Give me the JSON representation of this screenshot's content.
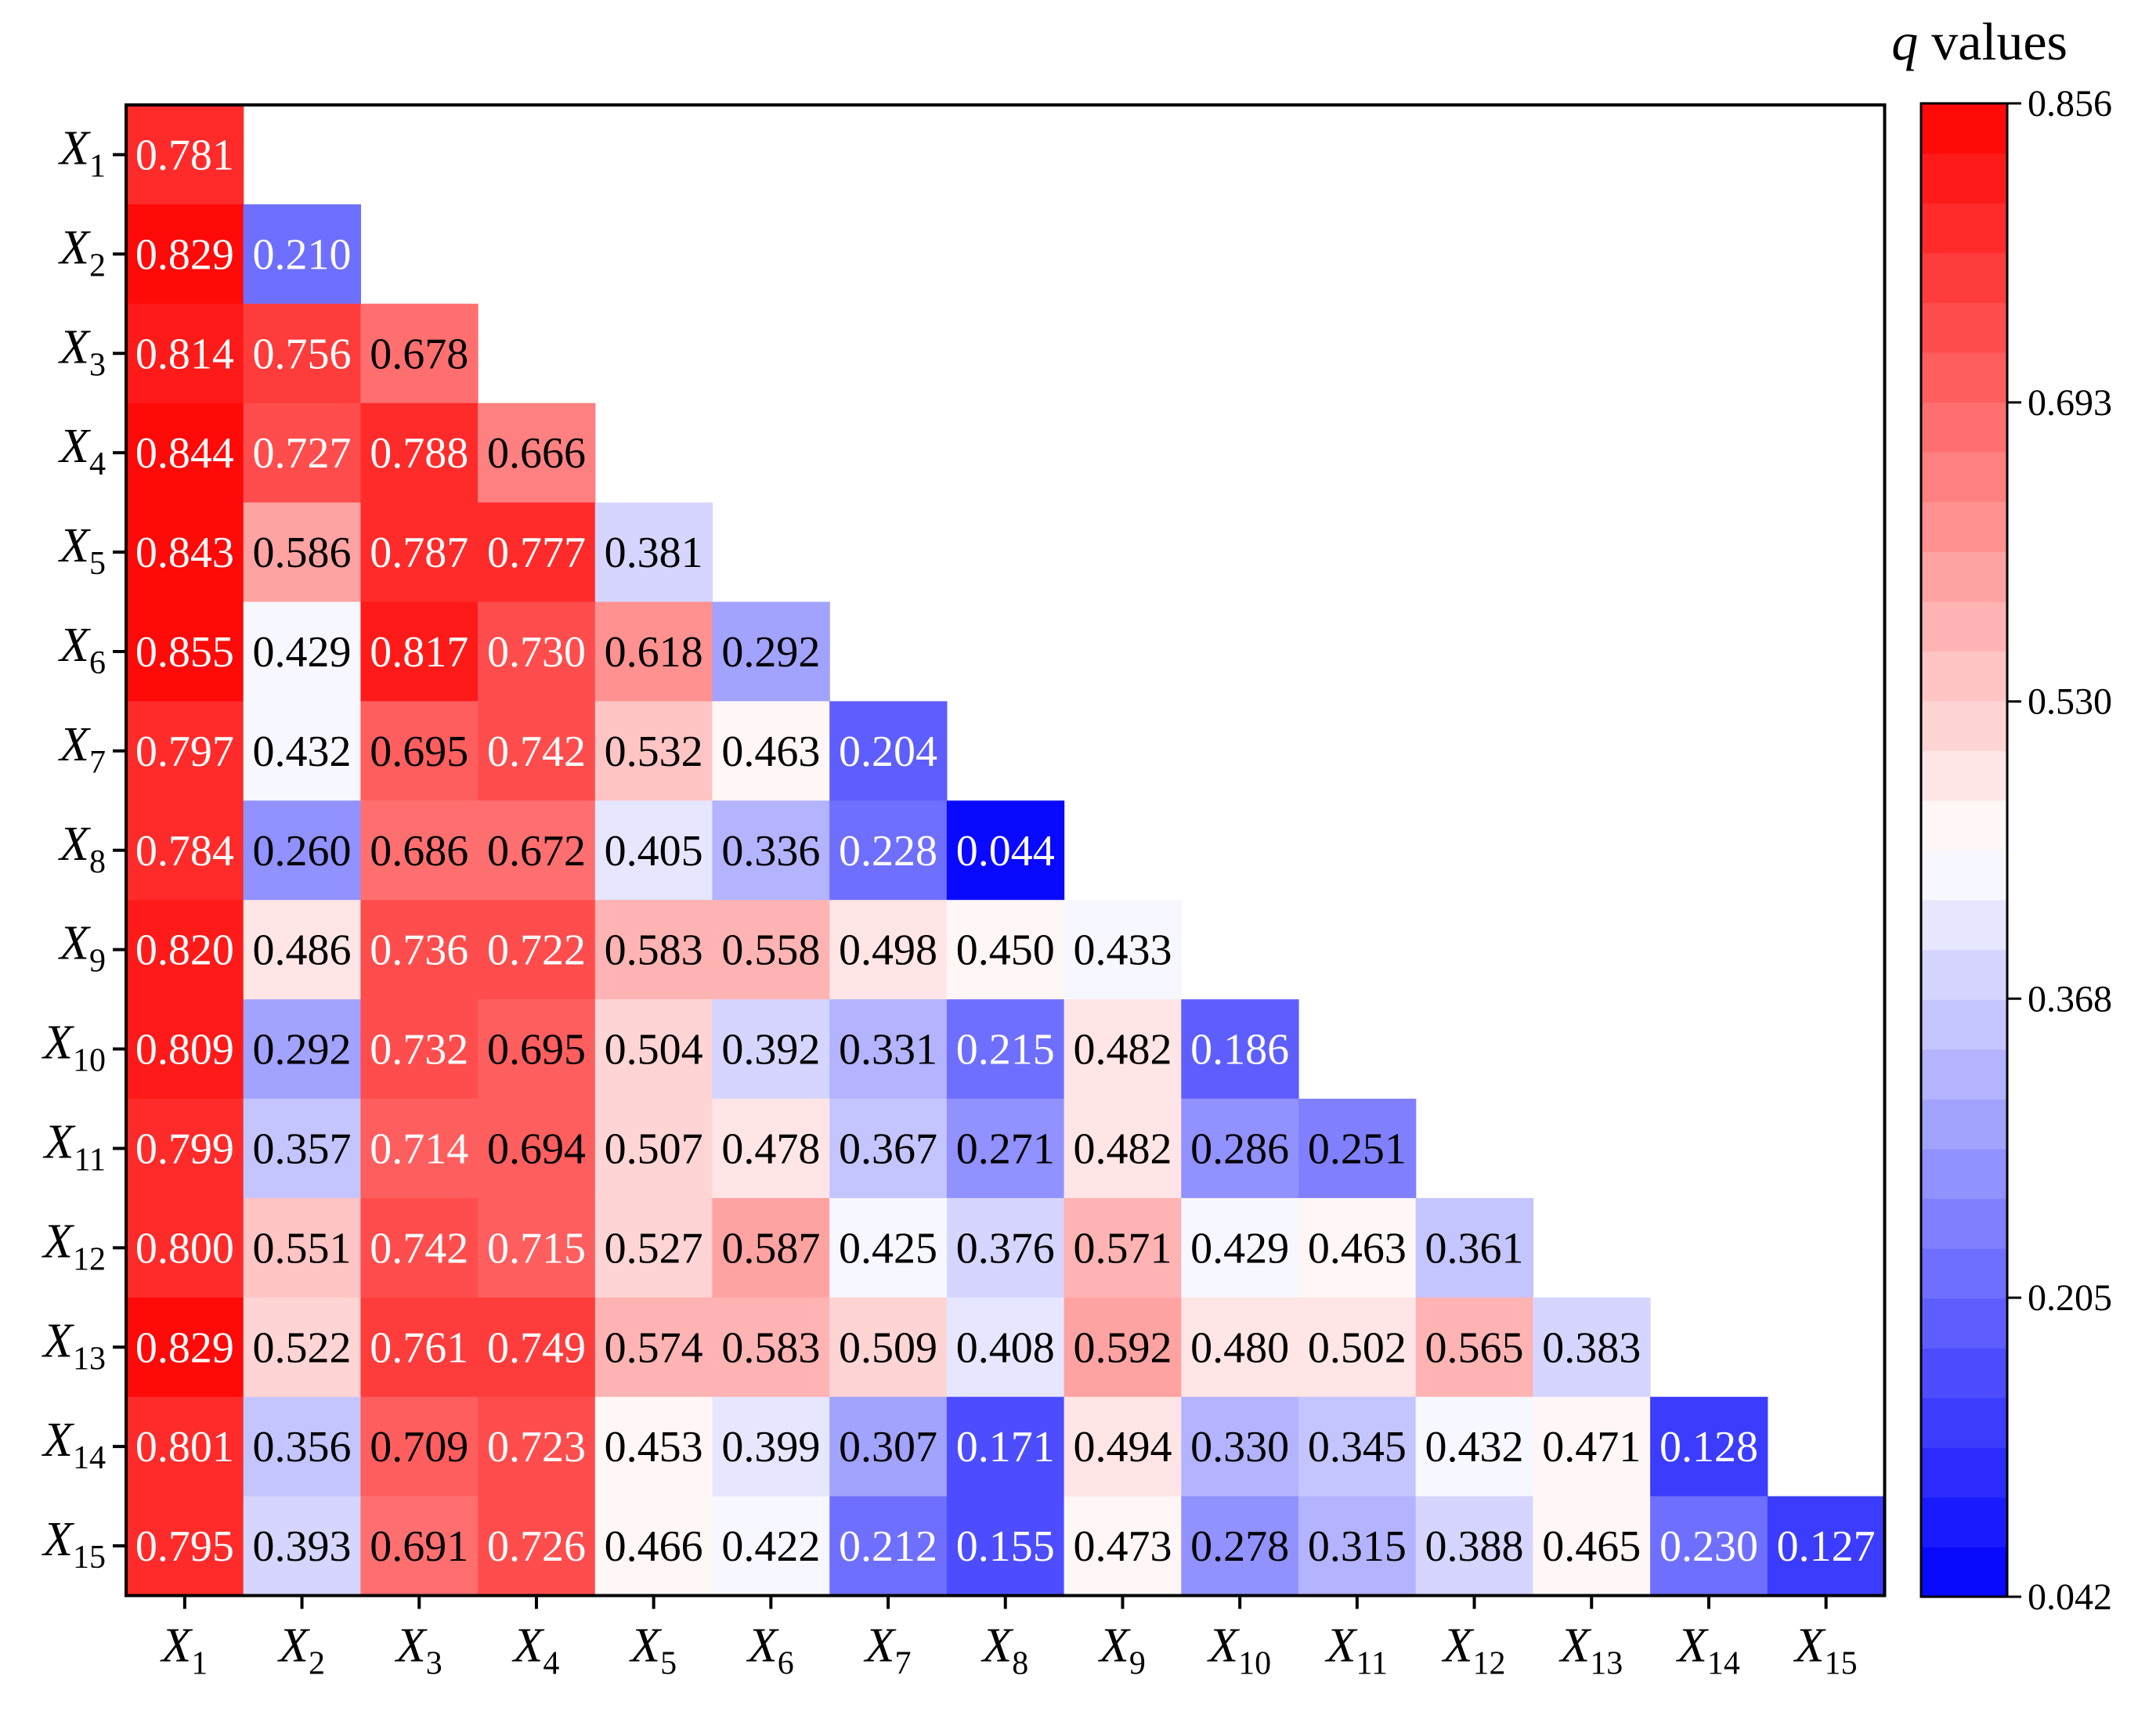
{
  "chart_data": {
    "type": "heatmap",
    "title": "",
    "colorbar_label_var": "q",
    "colorbar_label_rest": " values",
    "colorbar_ticks": [
      "0.856",
      "0.693",
      "0.530",
      "0.368",
      "0.205",
      "0.042"
    ],
    "colorbar_tick_values": [
      0.856,
      0.693,
      0.53,
      0.368,
      0.205,
      0.042
    ],
    "vmin": 0.042,
    "vmax": 0.856,
    "color_low": "#0000ff",
    "color_mid": "#ffffff",
    "color_high": "#ff0000",
    "n_color_steps": 30,
    "label_prefix": "X",
    "labels": [
      "1",
      "2",
      "3",
      "4",
      "5",
      "6",
      "7",
      "8",
      "9",
      "10",
      "11",
      "12",
      "13",
      "14",
      "15"
    ],
    "rows": [
      [
        "0.781"
      ],
      [
        "0.829",
        "0.210"
      ],
      [
        "0.814",
        "0.756",
        "0.678"
      ],
      [
        "0.844",
        "0.727",
        "0.788",
        "0.666"
      ],
      [
        "0.843",
        "0.586",
        "0.787",
        "0.777",
        "0.381"
      ],
      [
        "0.855",
        "0.429",
        "0.817",
        "0.730",
        "0.618",
        "0.292"
      ],
      [
        "0.797",
        "0.432",
        "0.695",
        "0.742",
        "0.532",
        "0.463",
        "0.204"
      ],
      [
        "0.784",
        "0.260",
        "0.686",
        "0.672",
        "0.405",
        "0.336",
        "0.228",
        "0.044"
      ],
      [
        "0.820",
        "0.486",
        "0.736",
        "0.722",
        "0.583",
        "0.558",
        "0.498",
        "0.450",
        "0.433"
      ],
      [
        "0.809",
        "0.292",
        "0.732",
        "0.695",
        "0.504",
        "0.392",
        "0.331",
        "0.215",
        "0.482",
        "0.186"
      ],
      [
        "0.799",
        "0.357",
        "0.714",
        "0.694",
        "0.507",
        "0.478",
        "0.367",
        "0.271",
        "0.482",
        "0.286",
        "0.251"
      ],
      [
        "0.800",
        "0.551",
        "0.742",
        "0.715",
        "0.527",
        "0.587",
        "0.425",
        "0.376",
        "0.571",
        "0.429",
        "0.463",
        "0.361"
      ],
      [
        "0.829",
        "0.522",
        "0.761",
        "0.749",
        "0.574",
        "0.583",
        "0.509",
        "0.408",
        "0.592",
        "0.480",
        "0.502",
        "0.565",
        "0.383"
      ],
      [
        "0.801",
        "0.356",
        "0.709",
        "0.723",
        "0.453",
        "0.399",
        "0.307",
        "0.171",
        "0.494",
        "0.330",
        "0.345",
        "0.432",
        "0.471",
        "0.128"
      ],
      [
        "0.795",
        "0.393",
        "0.691",
        "0.726",
        "0.466",
        "0.422",
        "0.212",
        "0.155",
        "0.473",
        "0.278",
        "0.315",
        "0.388",
        "0.465",
        "0.230",
        "0.127"
      ]
    ]
  }
}
